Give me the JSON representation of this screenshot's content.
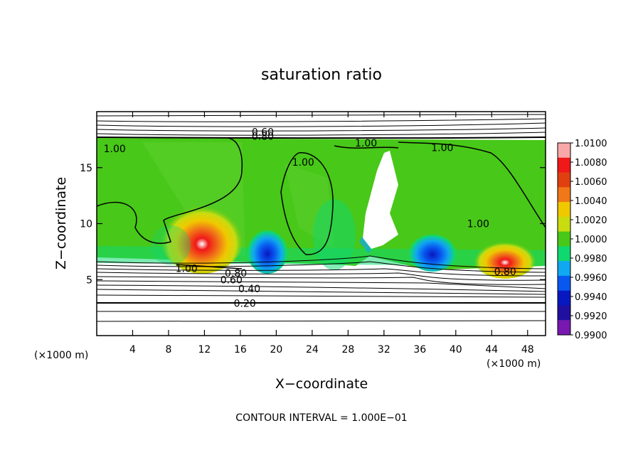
{
  "chart_data": {
    "type": "heatmap",
    "title": "saturation ratio",
    "xlabel": "X−coordinate",
    "ylabel": "Z−coordinate",
    "x_unit_left": "(×1000 m)",
    "x_unit_right": "(×1000 m)",
    "footer": "CONTOUR INTERVAL = 1.000E−01",
    "xlim": [
      0,
      50
    ],
    "ylim": [
      0,
      20
    ],
    "x_ticks": [
      4,
      8,
      12,
      16,
      20,
      24,
      28,
      32,
      36,
      40,
      44,
      48
    ],
    "y_ticks": [
      5,
      10,
      15
    ],
    "colorbar": {
      "min": 0.99,
      "max": 1.01,
      "labels": [
        "1.0100",
        "1.0080",
        "1.0060",
        "1.0040",
        "1.0020",
        "1.0000",
        "0.9980",
        "0.9960",
        "0.9940",
        "0.9920",
        "0.9900"
      ],
      "colors": [
        "#f8a8a8",
        "#f01818",
        "#e04010",
        "#f07818",
        "#f0c800",
        "#c8dc10",
        "#48c818",
        "#10d870",
        "#10a8f0",
        "#0858f0",
        "#0818c0",
        "#2010a0",
        "#7818b0"
      ]
    },
    "contour_labels": [
      {
        "text": "0.60",
        "x": 18.5,
        "z": 18.2
      },
      {
        "text": "0.80",
        "x": 18.5,
        "z": 17.8
      },
      {
        "text": "1.00",
        "x": 2.0,
        "z": 16.7
      },
      {
        "text": "1.00",
        "x": 23.0,
        "z": 15.5
      },
      {
        "text": "1.00",
        "x": 30.0,
        "z": 17.2
      },
      {
        "text": "1.00",
        "x": 38.5,
        "z": 16.8
      },
      {
        "text": "1.00",
        "x": 42.5,
        "z": 10.0
      },
      {
        "text": "1.00",
        "x": 10.0,
        "z": 6.0
      },
      {
        "text": "0.80",
        "x": 15.5,
        "z": 5.6
      },
      {
        "text": "0.60",
        "x": 15.0,
        "z": 5.0
      },
      {
        "text": "0.80",
        "x": 45.5,
        "z": 5.7
      },
      {
        "text": "0.40",
        "x": 17.0,
        "z": 4.2
      },
      {
        "text": "0.20",
        "x": 16.5,
        "z": 2.9
      }
    ],
    "cloud_region_z": [
      6.2,
      17.5
    ],
    "features": [
      {
        "kind": "max",
        "x": 11.5,
        "z": 7.5,
        "value": 1.008
      },
      {
        "kind": "max",
        "x": 45.0,
        "z": 6.7,
        "value": 1.008
      },
      {
        "kind": "min",
        "x": 19.0,
        "z": 7.0,
        "value": 0.992
      },
      {
        "kind": "min",
        "x": 37.5,
        "z": 7.0,
        "value": 0.992
      }
    ]
  }
}
